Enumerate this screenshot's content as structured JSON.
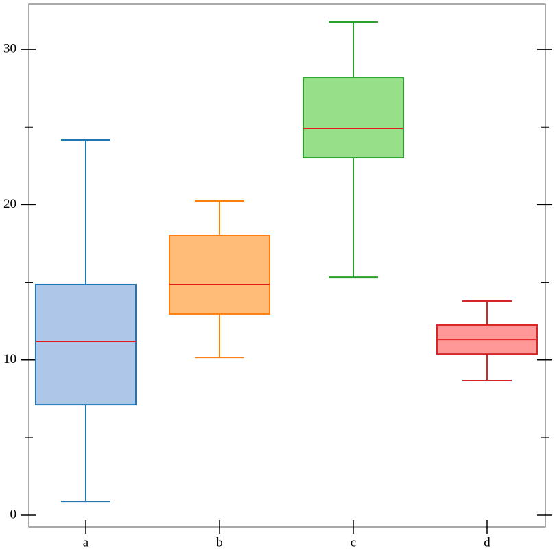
{
  "chart_data": {
    "type": "box",
    "categories": [
      "a",
      "b",
      "c",
      "d"
    ],
    "min": [
      0.88,
      10.16,
      15.33,
      8.66
    ],
    "q1": [
      7.11,
      12.95,
      23.02,
      10.38
    ],
    "median": [
      11.18,
      14.85,
      24.92,
      11.31
    ],
    "q3": [
      14.85,
      18.03,
      28.19,
      12.24
    ],
    "max": [
      24.17,
      20.24,
      31.77,
      13.79
    ],
    "colors": [
      "#1f77b4",
      "#ff7f0e",
      "#2ca02c",
      "#d62728"
    ],
    "fill_colors": [
      "#aec7e8",
      "#ffbb78",
      "#98df8a",
      "#ff9896"
    ],
    "median_color": "#e41a1c",
    "ylim": [
      -0.75,
      32.92
    ],
    "yticks": [
      0,
      10,
      20,
      30
    ],
    "minor_yticks": [
      5,
      15,
      25
    ]
  }
}
